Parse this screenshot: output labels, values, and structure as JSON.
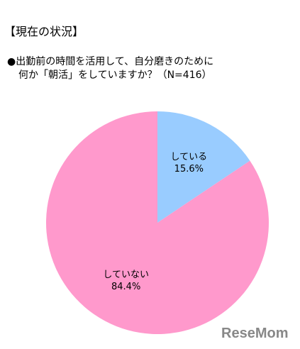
{
  "chart_data": {
    "type": "pie",
    "title": "【現在の状況】",
    "subtitle_lines": [
      "●出勤前の時間を活用して、自分磨きのために",
      "何か「朝活」をしていますか？（N=416）"
    ],
    "categories": [
      "している",
      "していない"
    ],
    "values": [
      15.6,
      84.4
    ],
    "value_labels": [
      "15.6%",
      "84.4%"
    ],
    "colors": [
      "#99ccff",
      "#ff99cc"
    ],
    "watermark": "ReseMom"
  }
}
